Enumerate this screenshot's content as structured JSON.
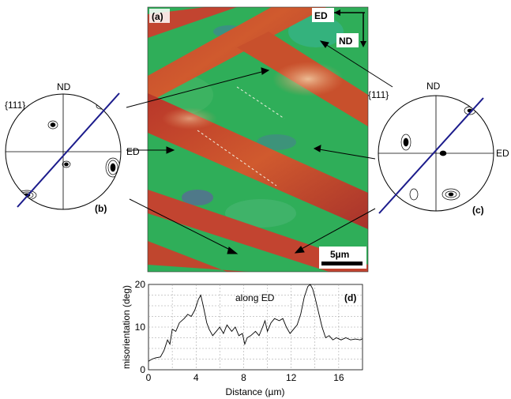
{
  "figure": {
    "map": {
      "panel_label": "(a)",
      "axis_labels": [
        "ED",
        "ND"
      ],
      "pole_label": "{111}",
      "scale_bar": "5µm"
    },
    "pole_figure_b": {
      "panel_label": "(b)",
      "pole_label": "{111}",
      "nd_label": "ND",
      "ed_label": "ED"
    },
    "pole_figure_c": {
      "panel_label": "(c)",
      "nd_label": "ND",
      "ed_label": "ED"
    },
    "profile": {
      "panel_label": "(d)",
      "annotation": "along ED"
    },
    "colors": {
      "green_band": "#2fae59",
      "red_band": "#c9442b",
      "line_of_section": "#1c1c8c"
    }
  },
  "chart_data": {
    "type": "line",
    "annotation": "along ED",
    "xlabel": "Distance (µm)",
    "ylabel": "misorientation (deg)",
    "xlim": [
      0,
      18
    ],
    "ylim": [
      0,
      20
    ],
    "xticks": [
      0,
      4,
      8,
      12,
      16
    ],
    "yticks": [
      0,
      10,
      20
    ],
    "grid": true,
    "series": [
      {
        "x": [
          0,
          0.3,
          0.6,
          1.0,
          1.3,
          1.6,
          1.8,
          2.0,
          2.3,
          2.6,
          3.0,
          3.3,
          3.6,
          3.9,
          4.2,
          4.4,
          4.6,
          4.9,
          5.1,
          5.4,
          5.7,
          6.0,
          6.3,
          6.6,
          7.0,
          7.3,
          7.6,
          7.9,
          8.1,
          8.3,
          8.6,
          9.0,
          9.3,
          9.6,
          9.8,
          10.0,
          10.3,
          10.6,
          11.0,
          11.3,
          11.6,
          11.9,
          12.2,
          12.5,
          12.8,
          13.1,
          13.4,
          13.6,
          13.8,
          14.0,
          14.3,
          14.6,
          14.9,
          15.2,
          15.5,
          15.8,
          16.2,
          16.6,
          17.0,
          17.4,
          17.8,
          18.0
        ],
        "y": [
          2,
          2.5,
          2.8,
          3.0,
          4.5,
          7.0,
          6.0,
          9.5,
          9.0,
          11.0,
          12.0,
          13.0,
          12.5,
          14.0,
          16.5,
          17.5,
          15.0,
          11.0,
          9.5,
          8.0,
          9.0,
          10.0,
          8.5,
          10.5,
          9.0,
          10.0,
          8.0,
          8.5,
          6.0,
          7.5,
          8.0,
          9.0,
          8.0,
          10.0,
          11.5,
          9.0,
          11.0,
          12.0,
          11.5,
          12.0,
          10.0,
          8.5,
          9.5,
          10.5,
          13.0,
          17.0,
          19.5,
          20.0,
          19.0,
          17.0,
          13.5,
          10.0,
          7.5,
          8.0,
          7.0,
          7.5,
          7.0,
          7.5,
          7.0,
          7.2,
          7.0,
          7.3
        ]
      }
    ]
  }
}
